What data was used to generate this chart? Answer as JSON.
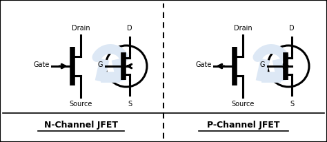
{
  "bg_color": "#ffffff",
  "border_color": "#000000",
  "line_color": "#000000",
  "left_label": "N-Channel JFET",
  "right_label": "P-Channel JFET",
  "gate_label": "Gate",
  "drain_label": "Drain",
  "source_label": "Source",
  "D_label": "D",
  "G_label": "G",
  "S_label": "S",
  "watermark_color": "#dde8f5",
  "lw": 2.2,
  "lw_thick": 5.5
}
